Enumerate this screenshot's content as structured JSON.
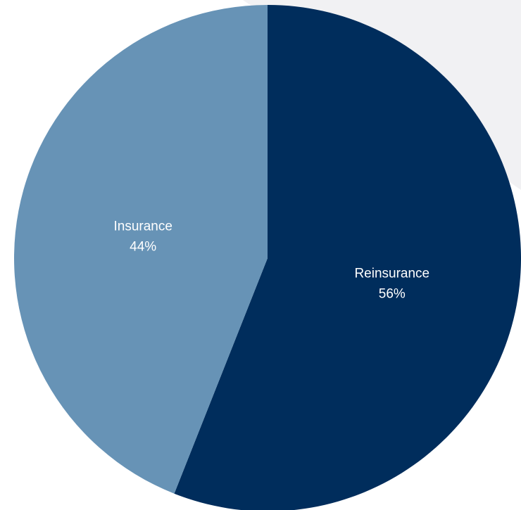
{
  "chart_data": {
    "type": "pie",
    "title": "",
    "start": "12 o'clock",
    "direction": "clockwise",
    "slices": [
      {
        "label": "Reinsurance",
        "value": 56,
        "value_label": "56%",
        "color": "#002d5c"
      },
      {
        "label": "Insurance",
        "value": 44,
        "value_label": "44%",
        "color": "#6793b6"
      }
    ]
  },
  "background_color": "#ffffff"
}
